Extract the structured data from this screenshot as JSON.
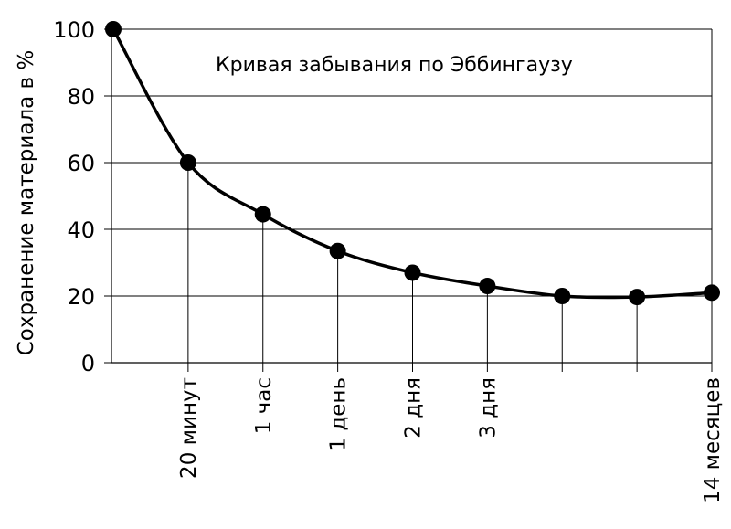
{
  "chart_data": {
    "type": "line",
    "title": "Кривая забывания по Эббингаузу",
    "xlabel": "",
    "ylabel": "Сохранение материала в %",
    "ylim": [
      0,
      100
    ],
    "yticks": [
      "0",
      "20",
      "40",
      "60",
      "80",
      "100"
    ],
    "grid": "horizontal",
    "categories": [
      "",
      "20 минут",
      "1 час",
      "1 день",
      "2 дня",
      "3 дня",
      "",
      "",
      "14 месяцев"
    ],
    "series": [
      {
        "values": [
          100,
          60,
          44.5,
          33.5,
          27,
          23,
          20,
          19.7,
          21
        ]
      }
    ],
    "colors": {
      "line": "#000000",
      "grid": "#000000",
      "marker": "#000000"
    }
  }
}
